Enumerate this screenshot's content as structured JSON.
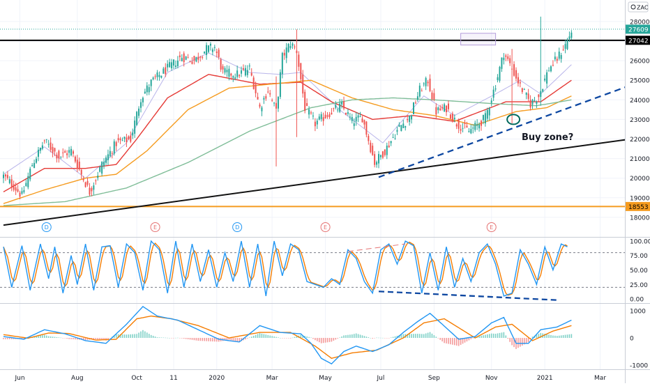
{
  "symbol_tag": "ZAC",
  "colors": {
    "up": "#26a69a",
    "down": "#ef5350",
    "ma_fast": "#b8b4ea",
    "ma_red": "#e53935",
    "ma_orange": "#f59b1f",
    "ma_green": "#7fbd98",
    "trend": "#111111",
    "dashed": "#0d47a1",
    "stoch_k": "#2196f3",
    "stoch_d": "#f57c00",
    "macd_line": "#2196f3",
    "signal_line": "#f57c00"
  },
  "annotation": {
    "text": "Buy zone?"
  },
  "chart_data": [
    {
      "type": "candlestick",
      "title": "",
      "price_axis": {
        "ticks": [
          28000,
          27000,
          26000,
          25000,
          24000,
          23000,
          22000,
          21000,
          20000,
          19000,
          18000
        ],
        "tick_labels": [
          "28000",
          "27000",
          "26000",
          "25000",
          "24000",
          "23000",
          "22000",
          "21000",
          "20000",
          "19000",
          "18000"
        ],
        "range": [
          17000,
          29100
        ]
      },
      "time_axis": {
        "labels": [
          "Jun",
          "Aug",
          "Oct",
          "11",
          "2020",
          "Mar",
          "May",
          "Jul",
          "Sep",
          "Nov",
          "2021",
          "Mar"
        ]
      },
      "price_labels": [
        {
          "value": 27609,
          "text": "27609",
          "style": "last"
        },
        {
          "value": 27042,
          "text": "27042",
          "style": "black"
        },
        {
          "value": 18553,
          "text": "18553",
          "style": "orange"
        }
      ],
      "horizontal_levels": [
        {
          "value": 27042,
          "color": "#000000"
        },
        {
          "value": 18553,
          "color": "#f59b1f"
        }
      ],
      "event_markers": [
        "D",
        "E",
        "D",
        "E",
        "E"
      ],
      "close_anchors": [
        [
          0,
          20100
        ],
        [
          5,
          19600
        ],
        [
          9,
          19100
        ],
        [
          14,
          20700
        ],
        [
          20,
          21900
        ],
        [
          27,
          21100
        ],
        [
          33,
          21400
        ],
        [
          38,
          20200
        ],
        [
          42,
          19300
        ],
        [
          48,
          20700
        ],
        [
          55,
          21800
        ],
        [
          62,
          22000
        ],
        [
          67,
          24100
        ],
        [
          72,
          24900
        ],
        [
          80,
          25600
        ],
        [
          87,
          26200
        ],
        [
          93,
          26000
        ],
        [
          99,
          26600
        ],
        [
          103,
          26700
        ],
        [
          107,
          25400
        ],
        [
          114,
          25300
        ],
        [
          120,
          25600
        ],
        [
          125,
          23600
        ],
        [
          129,
          24500
        ],
        [
          133,
          23400
        ],
        [
          136,
          26200
        ],
        [
          140,
          26900
        ],
        [
          143,
          26500
        ],
        [
          147,
          23600
        ],
        [
          152,
          22800
        ],
        [
          160,
          23400
        ],
        [
          165,
          23700
        ],
        [
          170,
          22900
        ],
        [
          175,
          23100
        ],
        [
          181,
          20800
        ],
        [
          186,
          21400
        ],
        [
          193,
          22600
        ],
        [
          198,
          23100
        ],
        [
          203,
          24500
        ],
        [
          207,
          25000
        ],
        [
          211,
          23400
        ],
        [
          216,
          23600
        ],
        [
          221,
          22800
        ],
        [
          227,
          22400
        ],
        [
          231,
          22700
        ],
        [
          235,
          23100
        ],
        [
          240,
          24800
        ],
        [
          244,
          26400
        ],
        [
          248,
          25600
        ],
        [
          252,
          24700
        ],
        [
          257,
          23800
        ],
        [
          261,
          24200
        ],
        [
          266,
          25600
        ],
        [
          270,
          26100
        ],
        [
          274,
          26800
        ],
        [
          277,
          27500
        ]
      ],
      "moving_averages": [
        {
          "name": "",
          "color": "#b8b4ea",
          "points": [
            [
              0,
              20200
            ],
            [
              20,
              21600
            ],
            [
              40,
              20000
            ],
            [
              60,
              21800
            ],
            [
              80,
              25400
            ],
            [
              100,
              26400
            ],
            [
              120,
              25400
            ],
            [
              135,
              25300
            ],
            [
              145,
              25400
            ],
            [
              165,
              23400
            ],
            [
              185,
              21800
            ],
            [
              205,
              24200
            ],
            [
              220,
              23200
            ],
            [
              240,
              24300
            ],
            [
              252,
              25000
            ],
            [
              262,
              24300
            ],
            [
              277,
              25800
            ]
          ]
        },
        {
          "name": "",
          "color": "#e53935",
          "points": [
            [
              0,
              19300
            ],
            [
              20,
              20500
            ],
            [
              40,
              20500
            ],
            [
              55,
              20700
            ],
            [
              65,
              22000
            ],
            [
              80,
              24100
            ],
            [
              100,
              25300
            ],
            [
              125,
              24800
            ],
            [
              145,
              24900
            ],
            [
              160,
              23900
            ],
            [
              180,
              23000
            ],
            [
              200,
              23200
            ],
            [
              220,
              22900
            ],
            [
              245,
              23900
            ],
            [
              262,
              23900
            ],
            [
              277,
              25000
            ]
          ]
        },
        {
          "name": "",
          "color": "#f59b1f",
          "points": [
            [
              0,
              18700
            ],
            [
              20,
              19400
            ],
            [
              40,
              20000
            ],
            [
              55,
              20200
            ],
            [
              70,
              21400
            ],
            [
              90,
              23500
            ],
            [
              110,
              24600
            ],
            [
              130,
              24800
            ],
            [
              150,
              25000
            ],
            [
              170,
              24100
            ],
            [
              190,
              23500
            ],
            [
              210,
              23200
            ],
            [
              230,
              22700
            ],
            [
              250,
              23400
            ],
            [
              265,
              23600
            ],
            [
              277,
              24200
            ]
          ]
        },
        {
          "name": "",
          "color": "#7fbd98",
          "points": [
            [
              0,
              18600
            ],
            [
              30,
              18800
            ],
            [
              60,
              19500
            ],
            [
              90,
              20800
            ],
            [
              120,
              22400
            ],
            [
              150,
              23600
            ],
            [
              170,
              24000
            ],
            [
              190,
              24100
            ],
            [
              210,
              24000
            ],
            [
              240,
              23800
            ],
            [
              260,
              23700
            ],
            [
              277,
              24000
            ]
          ]
        }
      ],
      "trend_lines": [
        {
          "style": "solid",
          "from": [
            0,
            17600
          ],
          "to": [
            306,
            22000
          ]
        },
        {
          "style": "dashed",
          "from": [
            183,
            20050
          ],
          "to": [
            306,
            24750
          ]
        }
      ],
      "annotation_box": {
        "from": [
          223,
          26800
        ],
        "to": [
          240,
          27400
        ]
      },
      "spikes": [
        {
          "index": 133,
          "high": 25200,
          "low": 20600
        },
        {
          "index": 143,
          "high": 27600,
          "low": 22100
        },
        {
          "index": 262,
          "high": 28250,
          "low": 23700
        },
        {
          "index": 248,
          "high": 26600,
          "low": 22800
        }
      ],
      "buy_zone": {
        "index": 248,
        "value": 23000
      }
    },
    {
      "type": "line",
      "name": "Stochastic",
      "y_axis": {
        "ticks": [
          100,
          75,
          50,
          25,
          0
        ],
        "tick_labels": [
          "100.00",
          "75.00",
          "50.00",
          "25.00",
          "0.00"
        ],
        "range": [
          -6,
          106
        ]
      },
      "reference_levels": [
        80,
        20
      ],
      "k_anchors": [
        [
          0,
          90
        ],
        [
          4,
          20
        ],
        [
          9,
          92
        ],
        [
          13,
          15
        ],
        [
          18,
          95
        ],
        [
          22,
          35
        ],
        [
          25,
          90
        ],
        [
          29,
          10
        ],
        [
          33,
          75
        ],
        [
          36,
          25
        ],
        [
          40,
          95
        ],
        [
          44,
          15
        ],
        [
          48,
          90
        ],
        [
          52,
          92
        ],
        [
          56,
          20
        ],
        [
          60,
          95
        ],
        [
          64,
          80
        ],
        [
          68,
          15
        ],
        [
          72,
          100
        ],
        [
          76,
          85
        ],
        [
          80,
          10
        ],
        [
          84,
          100
        ],
        [
          88,
          20
        ],
        [
          92,
          95
        ],
        [
          96,
          30
        ],
        [
          100,
          85
        ],
        [
          104,
          20
        ],
        [
          108,
          80
        ],
        [
          112,
          30
        ],
        [
          116,
          100
        ],
        [
          120,
          20
        ],
        [
          124,
          95
        ],
        [
          128,
          5
        ],
        [
          132,
          100
        ],
        [
          136,
          40
        ],
        [
          140,
          95
        ],
        [
          144,
          85
        ],
        [
          148,
          30
        ],
        [
          152,
          25
        ],
        [
          156,
          20
        ],
        [
          160,
          35
        ],
        [
          164,
          25
        ],
        [
          168,
          85
        ],
        [
          172,
          70
        ],
        [
          176,
          30
        ],
        [
          180,
          10
        ],
        [
          184,
          85
        ],
        [
          188,
          95
        ],
        [
          192,
          60
        ],
        [
          196,
          100
        ],
        [
          200,
          92
        ],
        [
          204,
          10
        ],
        [
          208,
          80
        ],
        [
          212,
          15
        ],
        [
          216,
          90
        ],
        [
          220,
          20
        ],
        [
          224,
          70
        ],
        [
          228,
          30
        ],
        [
          232,
          80
        ],
        [
          236,
          95
        ],
        [
          240,
          60
        ],
        [
          244,
          5
        ],
        [
          248,
          10
        ],
        [
          252,
          85
        ],
        [
          256,
          60
        ],
        [
          260,
          25
        ],
        [
          264,
          90
        ],
        [
          268,
          50
        ],
        [
          272,
          95
        ],
        [
          275,
          90
        ]
      ],
      "dashed_lines": [
        {
          "style": "dashed",
          "color": "#0d47a1",
          "from": [
            183,
            13
          ],
          "to": [
            270,
            -2
          ]
        },
        {
          "style": "dashed",
          "color": "#e57373",
          "from": [
            168,
            82
          ],
          "to": [
            196,
            95
          ]
        }
      ]
    },
    {
      "type": "histogram",
      "name": "MACD",
      "y_axis": {
        "ticks": [
          1000,
          0,
          -1000
        ],
        "tick_labels": [
          "1000",
          "0",
          "-1000"
        ],
        "range": [
          -1150,
          1250
        ]
      },
      "macd_anchors": [
        [
          0,
          50
        ],
        [
          10,
          -50
        ],
        [
          20,
          300
        ],
        [
          30,
          150
        ],
        [
          40,
          -100
        ],
        [
          50,
          -200
        ],
        [
          60,
          500
        ],
        [
          68,
          1150
        ],
        [
          75,
          800
        ],
        [
          85,
          650
        ],
        [
          95,
          300
        ],
        [
          105,
          -50
        ],
        [
          115,
          -150
        ],
        [
          125,
          450
        ],
        [
          135,
          200
        ],
        [
          145,
          150
        ],
        [
          150,
          -200
        ],
        [
          155,
          -750
        ],
        [
          160,
          -950
        ],
        [
          166,
          -500
        ],
        [
          172,
          -300
        ],
        [
          180,
          -500
        ],
        [
          188,
          -250
        ],
        [
          195,
          200
        ],
        [
          202,
          600
        ],
        [
          208,
          900
        ],
        [
          214,
          500
        ],
        [
          222,
          -50
        ],
        [
          230,
          50
        ],
        [
          238,
          550
        ],
        [
          244,
          750
        ],
        [
          250,
          -200
        ],
        [
          256,
          -200
        ],
        [
          262,
          300
        ],
        [
          270,
          400
        ],
        [
          277,
          650
        ]
      ],
      "signal_anchors": [
        [
          0,
          120
        ],
        [
          12,
          -10
        ],
        [
          22,
          180
        ],
        [
          32,
          160
        ],
        [
          45,
          -80
        ],
        [
          55,
          -50
        ],
        [
          65,
          700
        ],
        [
          72,
          800
        ],
        [
          82,
          700
        ],
        [
          95,
          450
        ],
        [
          110,
          0
        ],
        [
          125,
          200
        ],
        [
          140,
          200
        ],
        [
          152,
          -300
        ],
        [
          160,
          -750
        ],
        [
          170,
          -550
        ],
        [
          182,
          -450
        ],
        [
          195,
          0
        ],
        [
          205,
          550
        ],
        [
          215,
          700
        ],
        [
          230,
          0
        ],
        [
          240,
          400
        ],
        [
          248,
          500
        ],
        [
          258,
          -100
        ],
        [
          268,
          250
        ],
        [
          277,
          450
        ]
      ]
    }
  ]
}
